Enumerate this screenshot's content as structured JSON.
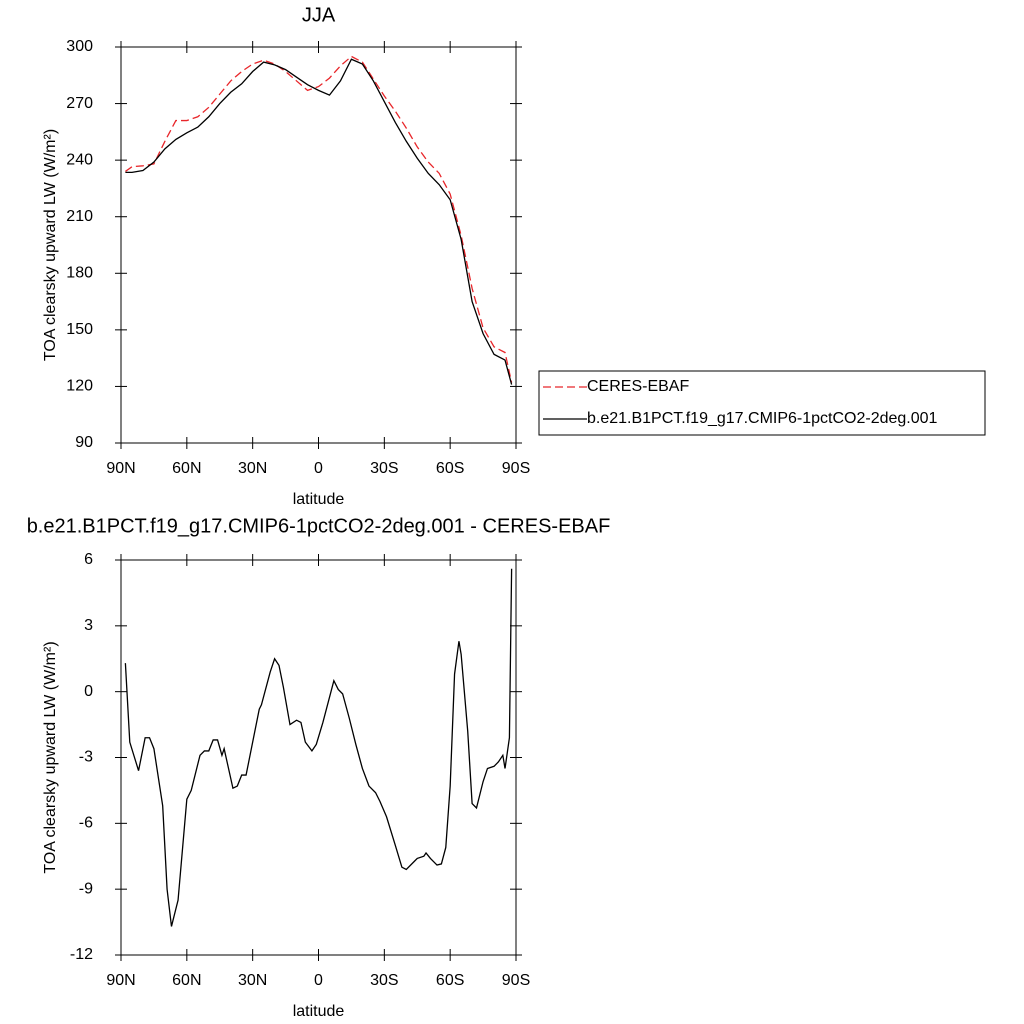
{
  "chart_data": [
    {
      "type": "line",
      "title": "JJA",
      "xlabel": "latitude",
      "ylabel": "TOA clearsky upward LW (W/m²)",
      "x": [
        88,
        85,
        80,
        75,
        70,
        65,
        60,
        55,
        50,
        45,
        40,
        35,
        30,
        25,
        20,
        15,
        10,
        5,
        0,
        -5,
        -10,
        -15,
        -20,
        -25,
        -30,
        -35,
        -40,
        -45,
        -50,
        -55,
        -60,
        -65,
        -70,
        -75,
        -80,
        -85,
        -88
      ],
      "series": [
        {
          "name": "CERES-EBAF",
          "color": "#e8262a",
          "dashed": true,
          "values": [
            234,
            236.5,
            237,
            238,
            250,
            261,
            261,
            263,
            268,
            275,
            282,
            287,
            291,
            293,
            291,
            287,
            282,
            277,
            279,
            283.5,
            290,
            295,
            292,
            283,
            274,
            266,
            257,
            247,
            239,
            233,
            222,
            200,
            172,
            151,
            141,
            138,
            122
          ]
        },
        {
          "name": "b.e21.B1PCT.f19_g17.CMIP6-1pctCO2-2deg.001",
          "color": "#000000",
          "dashed": false,
          "values": [
            233.5,
            233.5,
            234.5,
            239,
            246,
            251,
            254.5,
            257.5,
            263,
            270,
            276,
            280.5,
            287,
            292,
            290.5,
            288,
            284,
            280,
            277,
            274.5,
            282,
            293.5,
            291,
            282,
            271,
            260,
            250,
            241,
            233,
            227,
            219,
            198,
            165,
            148,
            137,
            134,
            121
          ]
        }
      ],
      "xlim": [
        90,
        -90
      ],
      "xticks": [
        {
          "value": 90,
          "label": "90N"
        },
        {
          "value": 60,
          "label": "60N"
        },
        {
          "value": 30,
          "label": "30N"
        },
        0,
        {
          "value": -30,
          "label": "30S"
        },
        {
          "value": -60,
          "label": "60S"
        },
        {
          "value": -90,
          "label": "90S"
        }
      ],
      "ylim": [
        90,
        300
      ],
      "yticks": [
        90,
        120,
        150,
        180,
        210,
        240,
        270,
        300
      ],
      "legend": "right"
    },
    {
      "type": "line",
      "title": "b.e21.B1PCT.f19_g17.CMIP6-1pctCO2-2deg.001 - CERES-EBAF",
      "xlabel": "latitude",
      "ylabel": "TOA clearsky upward LW (W/m²)",
      "x": [
        88,
        86,
        82,
        79,
        77,
        75,
        71,
        69,
        67,
        64,
        60,
        58,
        54,
        52,
        50,
        48,
        46,
        44,
        43,
        39,
        37,
        35,
        33,
        29,
        27,
        26,
        22,
        20,
        18,
        16,
        13,
        10,
        8,
        6,
        3,
        1,
        -2,
        -7,
        -9,
        -11,
        -14,
        -17,
        -20,
        -23,
        -26,
        -28,
        -31,
        -35,
        -38,
        -40,
        -44,
        -45,
        -48,
        -49,
        -51,
        -54,
        -56,
        -58,
        -60,
        -62,
        -64,
        -65,
        -68,
        -70,
        -72,
        -75,
        -77,
        -80,
        -82,
        -84,
        -85,
        -87,
        -88
      ],
      "values": [
        1.3,
        -2.3,
        -3.6,
        -2.1,
        -2.1,
        -2.6,
        -5.2,
        -9,
        -10.7,
        -9.5,
        -4.9,
        -4.5,
        -2.9,
        -2.7,
        -2.7,
        -2.2,
        -2.2,
        -2.9,
        -2.6,
        -4.4,
        -4.3,
        -3.8,
        -3.8,
        -1.8,
        -0.8,
        -0.6,
        0.9,
        1.5,
        1.2,
        0.2,
        -1.5,
        -1.3,
        -1.4,
        -2.3,
        -2.7,
        -2.4,
        -1.4,
        0.5,
        0.1,
        -0.1,
        -1.2,
        -2.4,
        -3.5,
        -4.3,
        -4.6,
        -5,
        -5.7,
        -7,
        -8,
        -8.1,
        -7.7,
        -7.6,
        -7.5,
        -7.35,
        -7.6,
        -7.9,
        -7.85,
        -7.1,
        -4.3,
        0.8,
        2.3,
        1.7,
        -1.8,
        -5.1,
        -5.3,
        -4.1,
        -3.5,
        -3.4,
        -3.2,
        -2.9,
        -3.5,
        -2.1,
        5.6
      ],
      "color": "#000000",
      "xlim": [
        90,
        -90
      ],
      "xticks": [
        {
          "value": 90,
          "label": "90N"
        },
        {
          "value": 60,
          "label": "60N"
        },
        {
          "value": 30,
          "label": "30N"
        },
        0,
        {
          "value": -30,
          "label": "30S"
        },
        {
          "value": -60,
          "label": "60S"
        },
        {
          "value": -90,
          "label": "90S"
        }
      ],
      "ylim": [
        -12,
        6
      ],
      "yticks": [
        -12,
        -9,
        -6,
        -3,
        0,
        3,
        6
      ]
    }
  ]
}
